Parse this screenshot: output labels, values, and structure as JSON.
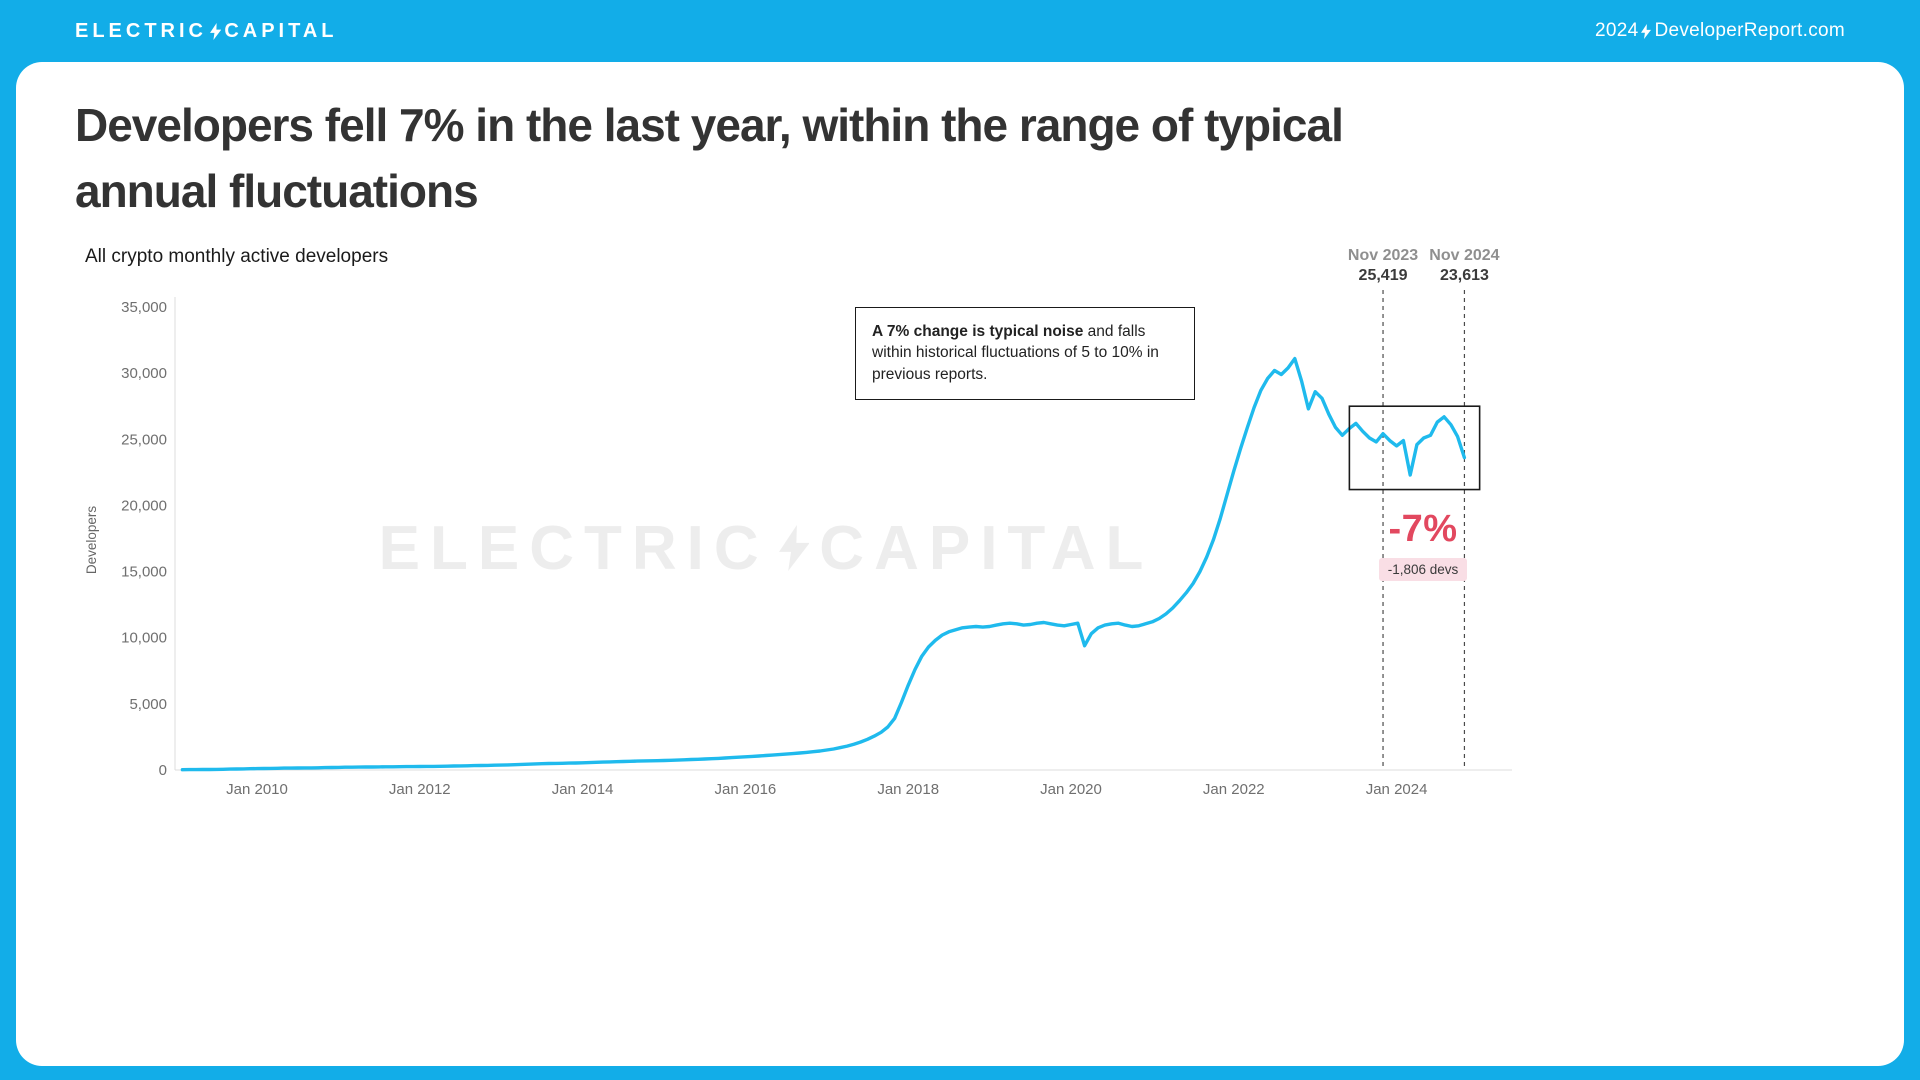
{
  "header": {
    "logo": {
      "left": "ELECTRIC",
      "right": "CAPITAL"
    },
    "report": {
      "year": "2024",
      "site": "DeveloperReport.com"
    }
  },
  "title": "Developers fell 7% in the last year, within the range of typical annual fluctuations",
  "subtitle": "All crypto monthly active developers",
  "watermark": {
    "left": "ELECTRIC",
    "right": "CAPITAL"
  },
  "note_box": {
    "bold": "A 7% change is typical noise",
    "rest": " and falls within historical fluctuations of 5 to 10% in previous reports."
  },
  "delta": {
    "percent": "-7%",
    "devs": "-1,806 devs"
  },
  "colors": {
    "brand_cyan": "#12ADE8",
    "line_cyan": "#1FBAED",
    "delta_red": "#E2485F",
    "badge_pink": "#F9DEE5"
  },
  "chart_data": {
    "type": "line",
    "title": "All crypto monthly active developers",
    "xlabel": "",
    "ylabel": "Developers",
    "ylim": [
      0,
      35000
    ],
    "grid": false,
    "legend": "none",
    "y_ticks": [
      0,
      5000,
      10000,
      15000,
      20000,
      25000,
      30000,
      35000
    ],
    "y_tick_labels": [
      "0",
      "5,000",
      "10,000",
      "15,000",
      "20,000",
      "25,000",
      "30,000",
      "35,000"
    ],
    "x_ticks": [
      {
        "t": 2010,
        "label": "Jan 2010"
      },
      {
        "t": 2012,
        "label": "Jan 2012"
      },
      {
        "t": 2014,
        "label": "Jan 2014"
      },
      {
        "t": 2016,
        "label": "Jan 2016"
      },
      {
        "t": 2018,
        "label": "Jan 2018"
      },
      {
        "t": 2020,
        "label": "Jan 2020"
      },
      {
        "t": 2022,
        "label": "Jan 2022"
      },
      {
        "t": 2024,
        "label": "Jan 2024"
      }
    ],
    "series": [
      {
        "name": "Monthly active developers",
        "color": "#1FBAED",
        "start_year": 2009,
        "start_month": 2,
        "values": [
          25,
          28,
          32,
          36,
          40,
          45,
          55,
          65,
          75,
          85,
          95,
          105,
          115,
          120,
          130,
          140,
          145,
          150,
          155,
          160,
          170,
          180,
          190,
          200,
          210,
          215,
          220,
          225,
          230,
          235,
          240,
          245,
          250,
          255,
          260,
          265,
          270,
          275,
          280,
          290,
          300,
          310,
          320,
          330,
          340,
          350,
          360,
          370,
          385,
          400,
          420,
          440,
          460,
          475,
          490,
          500,
          510,
          520,
          530,
          545,
          560,
          580,
          600,
          615,
          630,
          645,
          660,
          670,
          685,
          695,
          705,
          720,
          735,
          750,
          770,
          790,
          810,
          830,
          855,
          880,
          905,
          935,
          965,
          1000,
          1030,
          1060,
          1095,
          1130,
          1165,
          1200,
          1240,
          1285,
          1330,
          1380,
          1440,
          1510,
          1590,
          1690,
          1810,
          1950,
          2120,
          2320,
          2560,
          2850,
          3250,
          3900,
          5100,
          6400,
          7600,
          8600,
          9300,
          9800,
          10200,
          10450,
          10600,
          10750,
          10800,
          10850,
          10800,
          10850,
          10950,
          11050,
          11100,
          11050,
          10950,
          11000,
          11100,
          11150,
          11050,
          10950,
          10900,
          11000,
          11100,
          9400,
          10300,
          10750,
          10950,
          11050,
          11100,
          10950,
          10850,
          10900,
          11050,
          11200,
          11450,
          11800,
          12250,
          12800,
          13400,
          14100,
          15000,
          16100,
          17400,
          19000,
          20800,
          22600,
          24300,
          25900,
          27400,
          28700,
          29600,
          30200,
          29900,
          30400,
          31100,
          29400,
          27300,
          28600,
          28100,
          26900,
          25900,
          25300,
          25800,
          26200,
          25600,
          25100,
          24800,
          25419,
          24900,
          24500,
          24900,
          22300,
          24600,
          25100,
          25300,
          26300,
          26700,
          26100,
          25200,
          23613
        ]
      }
    ],
    "markers": [
      {
        "t": 2023.8333,
        "date": "Nov 2023",
        "value": 25419,
        "value_label": "25,419"
      },
      {
        "t": 2024.8333,
        "date": "Nov 2024",
        "value": 23613,
        "value_label": "23,613"
      }
    ],
    "highlight_box": {
      "t0": 2023.42,
      "t1": 2025.02,
      "v0": 21200,
      "v1": 27500
    }
  }
}
